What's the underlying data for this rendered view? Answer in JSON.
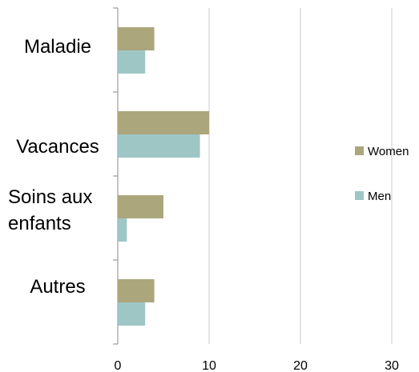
{
  "chart_data": {
    "type": "bar",
    "orientation": "horizontal",
    "categories": [
      "Maladie",
      "Vacances",
      "Soins aux enfants",
      "Autres"
    ],
    "series": [
      {
        "name": "Women",
        "color": "#aba67c",
        "values": [
          4,
          10,
          5,
          4
        ]
      },
      {
        "name": "Men",
        "color": "#9ec6c5",
        "values": [
          3,
          9,
          1,
          3
        ]
      }
    ],
    "xlim": [
      0,
      30
    ],
    "xticks": [
      0,
      10,
      20,
      30
    ],
    "grid": true,
    "legend": "right"
  }
}
